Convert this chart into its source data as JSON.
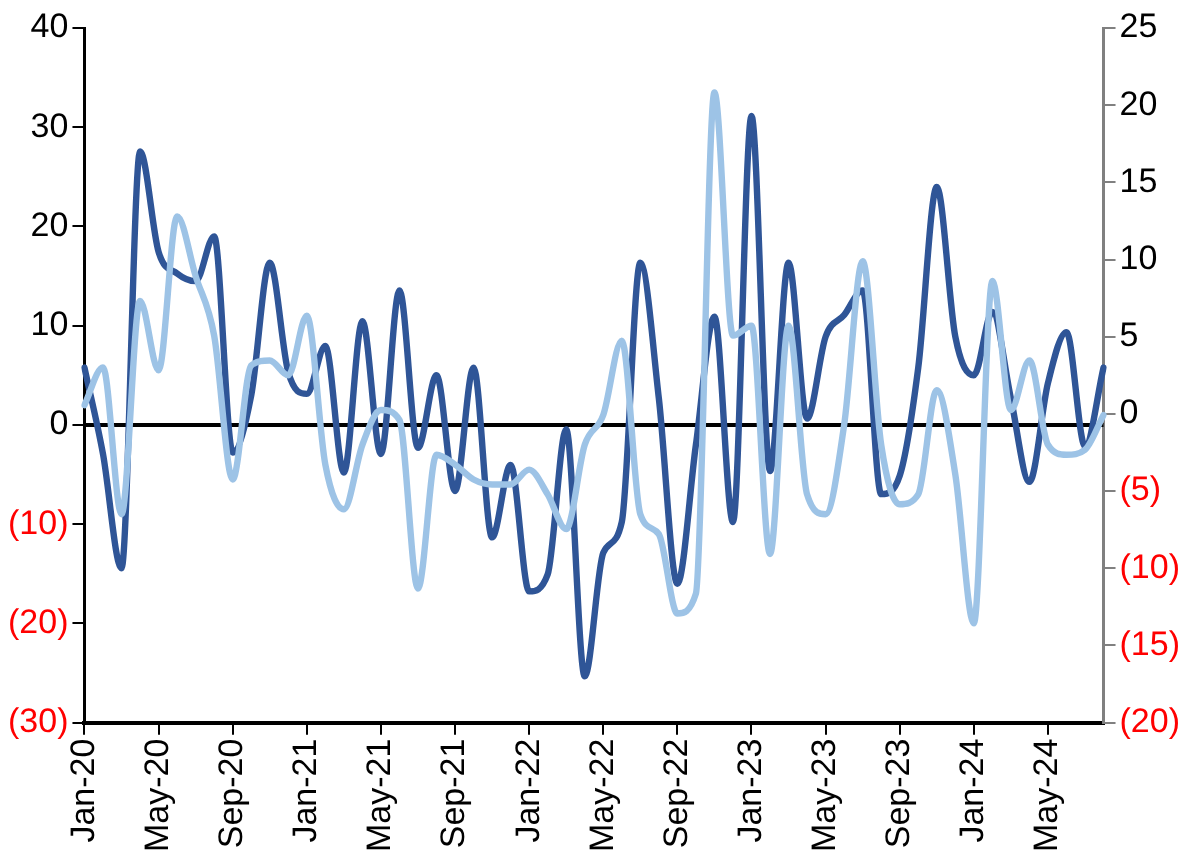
{
  "chart_data": {
    "type": "line",
    "categories": [
      "Jan-20",
      null,
      null,
      null,
      "May-20",
      null,
      null,
      null,
      "Sep-20",
      null,
      null,
      null,
      "Jan-21",
      null,
      null,
      null,
      "May-21",
      null,
      null,
      null,
      "Sep-21",
      null,
      null,
      null,
      "Jan-22",
      null,
      null,
      null,
      "May-22",
      null,
      null,
      null,
      "Sep-22",
      null,
      null,
      null,
      "Jan-23",
      null,
      null,
      null,
      "May-23",
      null,
      null,
      null,
      "Sep-23",
      null,
      null,
      null,
      "Jan-24",
      null,
      null,
      null,
      "May-24",
      null,
      null,
      null
    ],
    "series": [
      {
        "color": "#9dc3e6",
        "values": [
          2,
          5.8,
          -9,
          12.5,
          5.5,
          21,
          15,
          9,
          -5.5,
          6,
          6.5,
          5,
          11,
          -4,
          -8.5,
          -2,
          1.5,
          0.5,
          -16.5,
          -3,
          -4,
          -5.5,
          -6,
          -6,
          -4.5,
          -7,
          -10.5,
          -2,
          1,
          8.5,
          -9,
          -11,
          -19,
          -17,
          33.5,
          9,
          10,
          -13,
          10,
          -7,
          -9,
          0,
          16.5,
          -2,
          -8,
          -7,
          3.5,
          -5,
          -20,
          14.5,
          1.5,
          6.5,
          -2,
          -3,
          -2.5,
          1
        ]
      },
      {
        "color": "#2f5597",
        "axis": "y2",
        "values": [
          3,
          -2.6,
          -10,
          17,
          10.5,
          9.1,
          8.6,
          11.5,
          -2.5,
          1.2,
          9.8,
          2.7,
          1.3,
          4.4,
          -3.8,
          6,
          -2.6,
          8,
          -2.2,
          2.5,
          -5,
          3,
          -8,
          -3.3,
          -11.5,
          -10.4,
          -1,
          -17,
          -9,
          -7,
          9.8,
          1,
          -11,
          -2,
          6.3,
          -7,
          19.3,
          -3.7,
          9.8,
          -0.3,
          5,
          6.4,
          8,
          -5.2,
          -4,
          3,
          14.7,
          5,
          2.5,
          6.6,
          1,
          -4.4,
          2,
          5.3,
          -2.1,
          3
        ]
      }
    ],
    "ylim": [
      -30,
      40
    ],
    "yticks": [
      {
        "value": -30,
        "label": "(30)"
      },
      {
        "value": -20,
        "label": "(20)"
      },
      {
        "value": -10,
        "label": "(10)"
      },
      0,
      10,
      20,
      30,
      40
    ],
    "y2lim": [
      -20,
      25
    ],
    "y2ticks": [
      {
        "value": -20,
        "label": "(20)"
      },
      {
        "value": -15,
        "label": "(15)"
      },
      {
        "value": -10,
        "label": "(10)"
      },
      {
        "value": -5,
        "label": "(5)"
      },
      0,
      5,
      10,
      15,
      20,
      25
    ],
    "ref_lines": [
      {
        "axis": "y",
        "value": 0,
        "color": "#000000"
      }
    ],
    "grid": false
  }
}
